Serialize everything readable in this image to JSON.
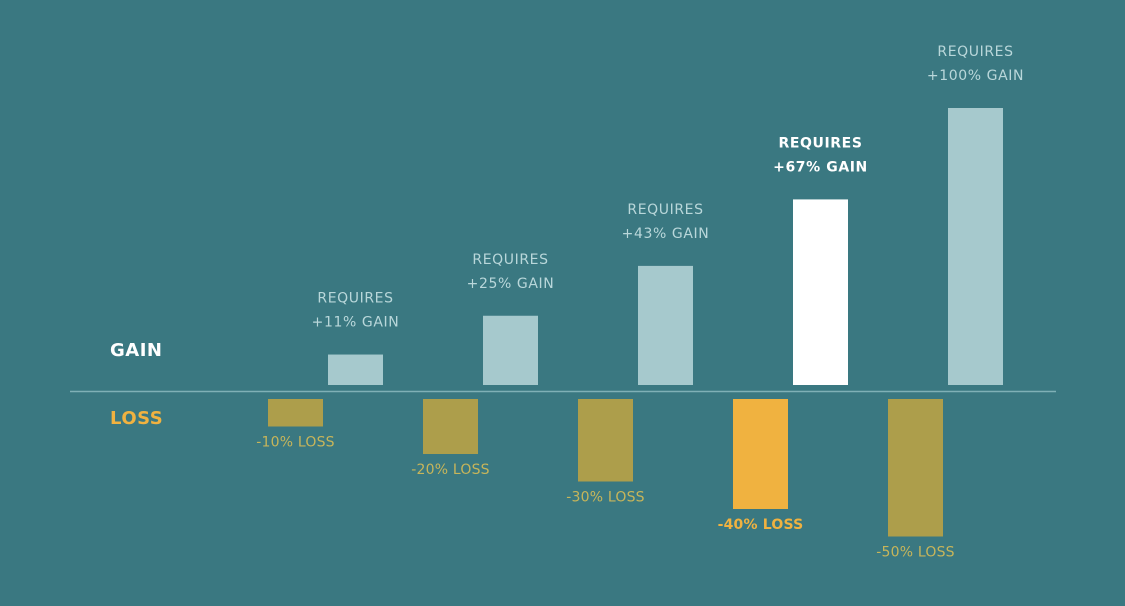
{
  "colors": {
    "background": "#3a7881",
    "gain_bar": "#a6c9cd",
    "gain_bar_highlight": "#ffffff",
    "loss_bar": "#ad9e4b",
    "loss_bar_highlight": "#f0b240",
    "gain_text": "#b9d7da",
    "gain_text_highlight": "#ffffff",
    "loss_text": "#c7b55a",
    "loss_text_highlight": "#f0b240",
    "baseline": "#7fb0b6"
  },
  "chart_data": {
    "type": "bar",
    "side_labels": {
      "gain": "GAIN",
      "loss": "LOSS"
    },
    "highlight_index": 3,
    "series": [
      {
        "values": [
          11,
          25,
          43,
          67,
          100
        ],
        "labels_line1": [
          "REQUIRES",
          "REQUIRES",
          "REQUIRES",
          "REQUIRES",
          "REQUIRES"
        ],
        "labels_line2": [
          "+11% GAIN",
          "+25% GAIN",
          "+43% GAIN",
          "+67% GAIN",
          "+100% GAIN"
        ]
      },
      {
        "values": [
          -10,
          -20,
          -30,
          -40,
          -50
        ],
        "labels": [
          "-10% LOSS",
          "-20% LOSS",
          "-30% LOSS",
          "-40% LOSS",
          "-50% LOSS"
        ]
      }
    ]
  }
}
